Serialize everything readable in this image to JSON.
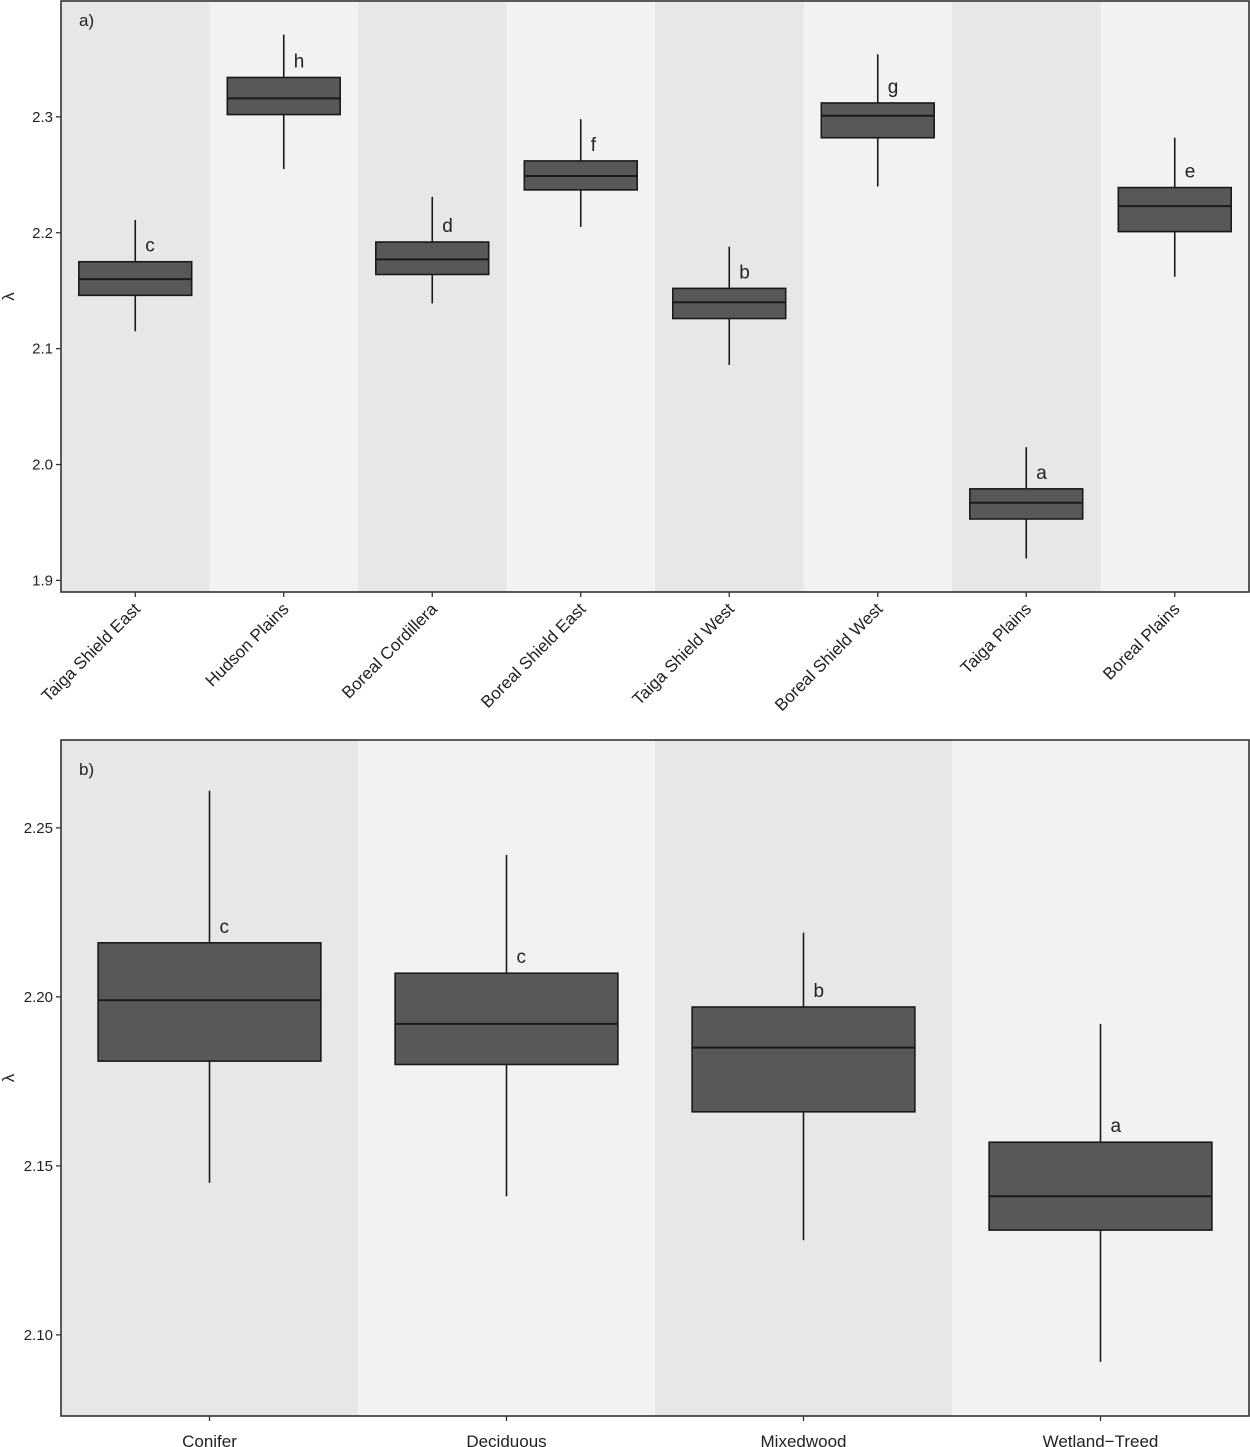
{
  "chart_data": [
    {
      "type": "boxplot",
      "panel_label": "a)",
      "ylabel": "λ",
      "ylim": [
        1.89,
        2.4
      ],
      "yticks": [
        "1.9",
        "2.0",
        "2.1",
        "2.2",
        "2.3"
      ],
      "categories": [
        "Taiga Shield East",
        "Hudson Plains",
        "Boreal Cordillera",
        "Boreal Shield East",
        "Taiga Shield West",
        "Boreal Shield West",
        "Taiga Plains",
        "Boreal Plains"
      ],
      "boxes": [
        {
          "min": 2.115,
          "q1": 2.146,
          "median": 2.16,
          "q3": 2.175,
          "max": 2.211,
          "letter": "c"
        },
        {
          "min": 2.255,
          "q1": 2.302,
          "median": 2.316,
          "q3": 2.334,
          "max": 2.371,
          "letter": "h"
        },
        {
          "min": 2.139,
          "q1": 2.164,
          "median": 2.177,
          "q3": 2.192,
          "max": 2.231,
          "letter": "d"
        },
        {
          "min": 2.205,
          "q1": 2.237,
          "median": 2.249,
          "q3": 2.262,
          "max": 2.298,
          "letter": "f"
        },
        {
          "min": 2.086,
          "q1": 2.126,
          "median": 2.14,
          "q3": 2.152,
          "max": 2.188,
          "letter": "b"
        },
        {
          "min": 2.24,
          "q1": 2.282,
          "median": 2.301,
          "q3": 2.312,
          "max": 2.354,
          "letter": "g"
        },
        {
          "min": 1.919,
          "q1": 1.953,
          "median": 1.967,
          "q3": 1.979,
          "max": 2.015,
          "letter": "a"
        },
        {
          "min": 2.162,
          "q1": 2.201,
          "median": 2.223,
          "q3": 2.239,
          "max": 2.282,
          "letter": "e"
        }
      ],
      "bands": [
        "#e6e7e8",
        "#f2f2f2"
      ]
    },
    {
      "type": "boxplot",
      "panel_label": "b)",
      "ylabel": "λ",
      "ylim": [
        2.076,
        2.276
      ],
      "yticks": [
        "2.10",
        "2.15",
        "2.20",
        "2.25"
      ],
      "categories": [
        "Conifer",
        "Deciduous",
        "Mixedwood",
        "Wetland−Treed"
      ],
      "boxes": [
        {
          "min": 2.145,
          "q1": 2.181,
          "median": 2.199,
          "q3": 2.216,
          "max": 2.261,
          "letter": "c"
        },
        {
          "min": 2.141,
          "q1": 2.18,
          "median": 2.192,
          "q3": 2.207,
          "max": 2.242,
          "letter": "c"
        },
        {
          "min": 2.128,
          "q1": 2.166,
          "median": 2.185,
          "q3": 2.197,
          "max": 2.219,
          "letter": "b"
        },
        {
          "min": 2.092,
          "q1": 2.131,
          "median": 2.141,
          "q3": 2.157,
          "max": 2.192,
          "letter": "a"
        }
      ],
      "bands": [
        "#e6e7e8",
        "#f2f2f2"
      ]
    }
  ],
  "colors": {
    "box_fill": "#58585a",
    "box_stroke": "#1a1a1a",
    "axis": "#333333",
    "text": "#222222"
  }
}
